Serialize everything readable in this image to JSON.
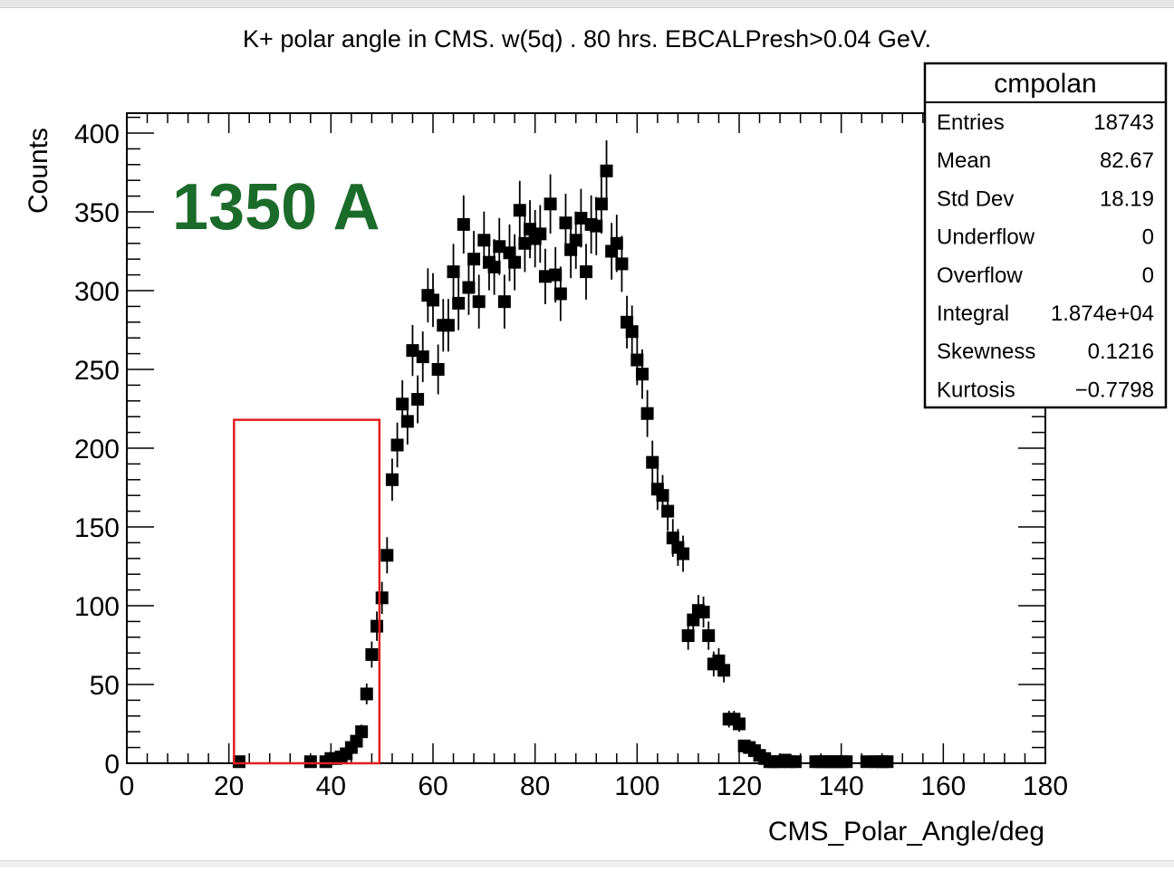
{
  "chart_data": {
    "type": "scatter",
    "title": "K+ polar angle in CMS. w(5q) . 80 hrs. EBCALPresh>0.04 GeV.",
    "xlabel": "CMS_Polar_Angle/deg",
    "ylabel": "Counts",
    "xlim": [
      0,
      180
    ],
    "ylim": [
      0,
      400
    ],
    "x_ticks": [
      "0",
      "20",
      "40",
      "60",
      "80",
      "100",
      "120",
      "140",
      "160",
      "180"
    ],
    "y_ticks": [
      "0",
      "50",
      "100",
      "150",
      "200",
      "250",
      "300",
      "350",
      "400"
    ],
    "annotation": "1350 A",
    "annotation_color": "#1b6b2a",
    "highlight_box": {
      "x_range": [
        21,
        49.5
      ],
      "y_range": [
        0,
        218
      ],
      "color": "#e02020"
    },
    "marker_color": "#000000",
    "series": [
      {
        "x": [
          22,
          36,
          39,
          40,
          41,
          42,
          43,
          44,
          45,
          46,
          47,
          48,
          49,
          50,
          51,
          52,
          53,
          54,
          55,
          56,
          57,
          58,
          59,
          60,
          61,
          62,
          63,
          64,
          65,
          66,
          67,
          68,
          69,
          70,
          71,
          72,
          73,
          74,
          75,
          76,
          77,
          78,
          79,
          80,
          81,
          82,
          83,
          84,
          85,
          86,
          87,
          88,
          89,
          90,
          91,
          92,
          93,
          94,
          95,
          96,
          97,
          98,
          99,
          100,
          101,
          102,
          103,
          104,
          105,
          106,
          107,
          108,
          109,
          110,
          111,
          112,
          113,
          114,
          115,
          116,
          117,
          118,
          119,
          120,
          121,
          122,
          123,
          124,
          125,
          126,
          127,
          128,
          129,
          130,
          131,
          135,
          136,
          137,
          138,
          139,
          140,
          141,
          145,
          147,
          148,
          149
        ],
        "y": [
          1,
          1,
          1,
          3,
          3,
          4,
          6,
          10,
          14,
          20,
          44,
          69,
          87,
          105,
          132,
          180,
          202,
          228,
          217,
          262,
          231,
          258,
          297,
          294,
          250,
          278,
          278,
          312,
          292,
          342,
          302,
          320,
          293,
          332,
          318,
          315,
          328,
          293,
          324,
          318,
          351,
          330,
          339,
          333,
          336,
          309,
          355,
          310,
          298,
          343,
          326,
          332,
          346,
          312,
          342,
          341,
          355,
          376,
          325,
          330,
          317,
          280,
          274,
          256,
          247,
          222,
          191,
          174,
          170,
          160,
          143,
          137,
          133,
          81,
          91,
          97,
          96,
          81,
          63,
          65,
          59,
          28,
          28,
          25,
          11,
          10,
          8,
          5,
          3,
          1,
          1,
          1,
          2,
          1,
          1,
          1,
          1,
          1,
          1,
          1,
          1,
          1,
          1,
          1,
          1,
          1
        ],
        "errors": [
          1,
          1,
          1,
          1.7,
          1.7,
          2,
          2.4,
          3.2,
          3.7,
          4.5,
          6.6,
          8.3,
          9.3,
          10.2,
          11.5,
          13.4,
          14.2,
          15.1,
          14.7,
          16.2,
          15.2,
          16.1,
          17.2,
          17.1,
          15.8,
          16.7,
          16.7,
          17.7,
          17.1,
          18.5,
          17.4,
          17.9,
          17.1,
          18.2,
          17.8,
          17.7,
          18.1,
          17.1,
          18,
          17.8,
          18.7,
          18.2,
          18.4,
          18.2,
          18.3,
          17.6,
          18.8,
          17.6,
          17.3,
          18.5,
          18.1,
          18.2,
          18.6,
          17.7,
          18.5,
          18.5,
          18.8,
          19.4,
          18,
          18.2,
          17.8,
          16.7,
          16.6,
          16,
          15.7,
          14.9,
          13.8,
          13.2,
          13,
          12.6,
          12,
          11.7,
          11.5,
          9,
          9.5,
          9.8,
          9.8,
          9,
          7.9,
          8.1,
          7.7,
          5.3,
          5.3,
          5,
          3.3,
          3.2,
          2.8,
          2.2,
          1.7,
          1,
          1,
          1,
          1.4,
          1,
          1,
          1,
          1,
          1,
          1,
          1,
          1,
          1,
          1,
          1,
          1,
          1
        ]
      }
    ]
  },
  "stats_box": {
    "title": "cmpolan",
    "rows": [
      {
        "label": "Entries",
        "value": "18743"
      },
      {
        "label": "Mean",
        "value": "82.67"
      },
      {
        "label": "Std Dev",
        "value": "18.19"
      },
      {
        "label": "Underflow",
        "value": "0"
      },
      {
        "label": "Overflow",
        "value": "0"
      },
      {
        "label": "Integral",
        "value": "1.874e+04"
      },
      {
        "label": "Skewness",
        "value": "0.1216"
      },
      {
        "label": "Kurtosis",
        "value": "−0.7798"
      }
    ]
  }
}
